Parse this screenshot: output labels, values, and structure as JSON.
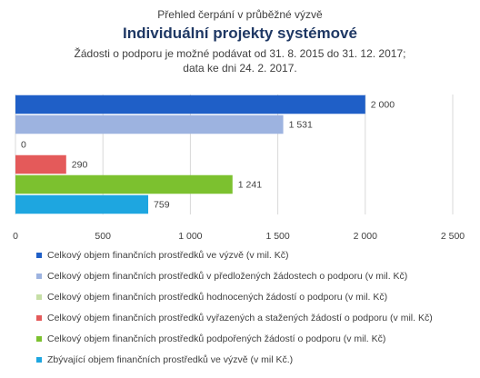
{
  "titles": {
    "line1": "Přehled čerpání v průběžné výzvě",
    "title": "Individuální projekty systémové",
    "line3": "Žádosti o podporu je možné podávat od 31. 8. 2015 do 31. 12. 2017;",
    "line4": "data ke dni 24. 2. 2017."
  },
  "chart_data": {
    "type": "bar",
    "orientation": "horizontal",
    "title": "Individuální projekty systémové",
    "xlim": [
      0,
      2500
    ],
    "xticks": [
      0,
      500,
      1000,
      1500,
      2000,
      2500
    ],
    "xtick_labels": [
      "0",
      "500",
      "1 000",
      "1 500",
      "2 000",
      "2 500"
    ],
    "grid": true,
    "legend_position": "bottom",
    "bars": [
      {
        "name": "Celkový objem finančních prostředků ve výzvě (v mil. Kč)",
        "value": 2000,
        "label": "2 000",
        "color": "#1f5fc7"
      },
      {
        "name": "Celkový objem finančních prostředků v předložených žádostech o podporu (v mil. Kč)",
        "value": 1531,
        "label": "1 531",
        "color": "#9db3e0"
      },
      {
        "name": "Celkový objem finančních prostředků hodnocených žádostí o podporu (v mil. Kč)",
        "value": 0,
        "label": "0",
        "color": "#c6dfa6"
      },
      {
        "name": "Celkový objem finančních prostředků vyřazených a stažených žádostí o podporu (v mil. Kč)",
        "value": 290,
        "label": "290",
        "color": "#e45a5a"
      },
      {
        "name": "Celkový objem finančních prostředků podpořených žádostí o podporu (v mil. Kč)",
        "value": 1241,
        "label": "1 241",
        "color": "#7cc12f"
      },
      {
        "name": "Zbývající objem finančních prostředků ve výzvě (v mil Kč.)",
        "value": 759,
        "label": "759",
        "color": "#1ea6e0"
      }
    ]
  }
}
